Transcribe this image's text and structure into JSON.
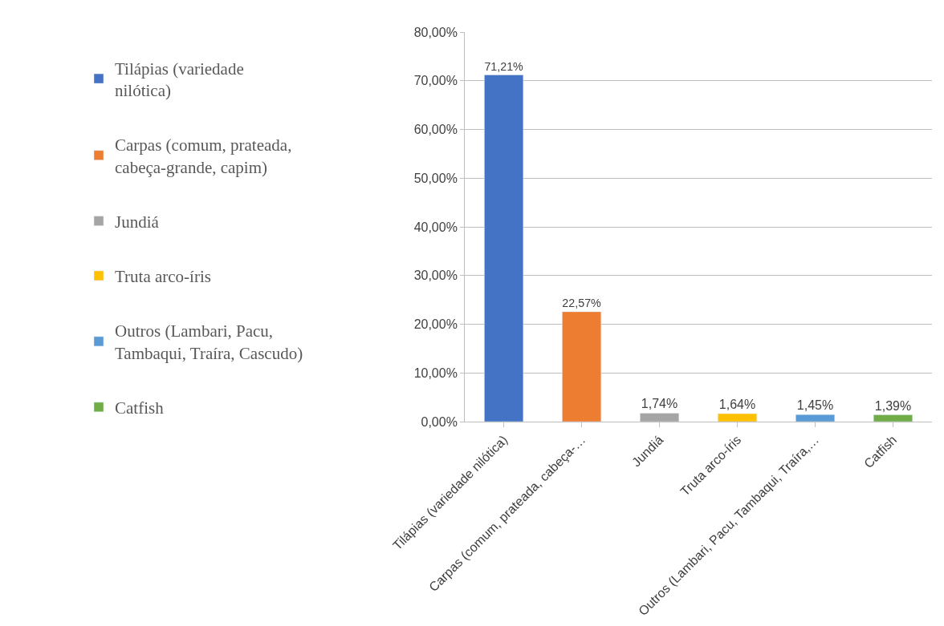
{
  "chart_data": {
    "type": "bar",
    "categories": [
      "Tilápias (variedade nilótica)",
      "Carpas (comum, prateada, cabeça-…",
      "Jundiá",
      "Truta arco-íris",
      "Outros (Lambari, Pacu, Tambaqui, Traíra,…",
      "Catfish"
    ],
    "series": [
      {
        "name": "Tilápias (variedade nilótica)",
        "color": "#4472c4",
        "values": [
          71.21,
          null,
          null,
          null,
          null,
          null
        ],
        "value_labels": [
          "71,21%",
          null,
          null,
          null,
          null,
          null
        ]
      },
      {
        "name": "Carpas (comum, prateada, cabeça-grande, capim)",
        "color": "#ed7d31",
        "values": [
          null,
          22.57,
          null,
          null,
          null,
          null
        ],
        "value_labels": [
          null,
          "22,57%",
          null,
          null,
          null,
          null
        ]
      },
      {
        "name": "Jundiá",
        "color": "#a5a5a5",
        "values": [
          null,
          null,
          1.74,
          null,
          null,
          null
        ],
        "value_labels": [
          null,
          null,
          "1,74%",
          null,
          null,
          null
        ]
      },
      {
        "name": "Truta arco-íris",
        "color": "#ffc000",
        "values": [
          null,
          null,
          null,
          1.64,
          null,
          null
        ],
        "value_labels": [
          null,
          null,
          null,
          "1,64%",
          null,
          null
        ]
      },
      {
        "name": "Outros (Lambari, Pacu, Tambaqui, Traíra, Cascudo)",
        "color": "#5b9bd5",
        "values": [
          null,
          null,
          null,
          null,
          1.45,
          null
        ],
        "value_labels": [
          null,
          null,
          null,
          null,
          "1,45%",
          null
        ]
      },
      {
        "name": "Catfish",
        "color": "#70ad47",
        "values": [
          null,
          null,
          null,
          null,
          null,
          1.39
        ],
        "value_labels": [
          null,
          null,
          null,
          null,
          null,
          "1,39%"
        ]
      }
    ],
    "ylim": [
      0,
      80
    ],
    "yticks": [
      {
        "value": 0,
        "label": "0,00%"
      },
      {
        "value": 10,
        "label": "10,00%"
      },
      {
        "value": 20,
        "label": "20,00%"
      },
      {
        "value": 30,
        "label": "30,00%"
      },
      {
        "value": 40,
        "label": "40,00%"
      },
      {
        "value": 50,
        "label": "50,00%"
      },
      {
        "value": 60,
        "label": "60,00%"
      },
      {
        "value": 70,
        "label": "70,00%"
      },
      {
        "value": 80,
        "label": "80,00%"
      }
    ],
    "grid": "y",
    "legend": "left"
  }
}
